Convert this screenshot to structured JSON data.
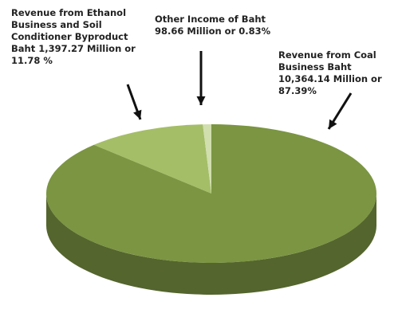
{
  "chart_data": {
    "type": "pie",
    "title": "",
    "slices": [
      {
        "name": "Revenue from Coal Business",
        "value_million_baht": 10364.14,
        "percent": 87.39,
        "label": "Revenue from Coal\nBusiness Baht\n10,364.14 Million or\n87.39%",
        "color": "#7b9542"
      },
      {
        "name": "Revenue from Ethanol Business and Soil Conditioner Byproduct",
        "value_million_baht": 1397.27,
        "percent": 11.78,
        "label": "Revenue from Ethanol\nBusiness and Soil\nConditioner Byproduct\nBaht 1,397.27 Million or\n11.78 %",
        "color": "#a4be68"
      },
      {
        "name": "Other Income",
        "value_million_baht": 98.66,
        "percent": 0.83,
        "label": "Other Income of Baht\n98.66 Million or 0.83%",
        "color": "#d1deae"
      }
    ],
    "style": "3d",
    "legend": "none"
  }
}
